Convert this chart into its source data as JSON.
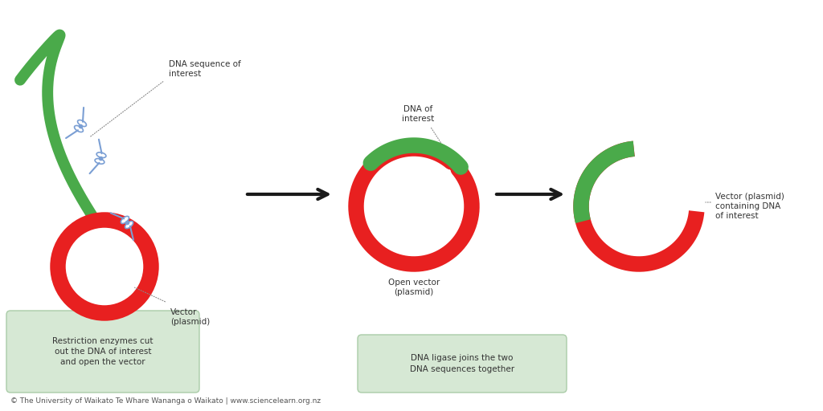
{
  "bg_color": "#ffffff",
  "green_color": "#4aaa4a",
  "red_color": "#e82020",
  "scissors_color": "#7b9fd4",
  "arrow_color": "#1a1a1a",
  "box_color": "#d6e8d4",
  "box_edge": "#aacca8",
  "text_color": "#333333",
  "footer_text": "© The University of Waikato Te Whare Wananga o Waikato | www.sciencelearn.org.nz",
  "label_dna_seq": "DNA sequence of\ninterest",
  "label_vector": "Vector\n(plasmid)",
  "label_open_vector": "Open vector\n(plasmid)",
  "label_dna_of_interest": "DNA of\ninterest",
  "label_final_vector": "Vector (plasmid)\ncontaining DNA\nof interest",
  "label_box1": "Restriction enzymes cut\nout the DNA of interest\nand open the vector",
  "label_box2": "DNA ligase joins the two\nDNA sequences together",
  "lw_thick": 10,
  "lw_medium": 8,
  "ring_lw": 14
}
